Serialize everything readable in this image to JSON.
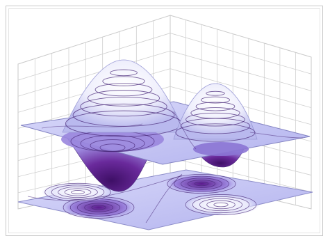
{
  "chart_data": {
    "type": "surface-3d",
    "surface": {
      "peaks": [
        {
          "x": -0.5,
          "y": -0.5,
          "z": 1
        },
        {
          "x": 0.5,
          "y": 0.5,
          "z": 1
        }
      ],
      "valleys": [
        {
          "x": 0.5,
          "y": -0.5,
          "z": -1
        },
        {
          "x": -0.5,
          "y": 0.5,
          "z": -1
        }
      ],
      "contour_levels": [
        -0.9,
        -0.75,
        -0.6,
        -0.45,
        -0.3,
        -0.15,
        0.15,
        0.3,
        0.45,
        0.6,
        0.75,
        0.9
      ]
    },
    "projections": [
      "base-plane-contours"
    ],
    "grid": true,
    "colors": {
      "high": "#f4f4ff",
      "mid": "#b8b8f0",
      "low": "#5a1a82",
      "contour": "#4a2a7a",
      "grid": "#d0d0d0",
      "plane": "#c9c9f5"
    }
  }
}
